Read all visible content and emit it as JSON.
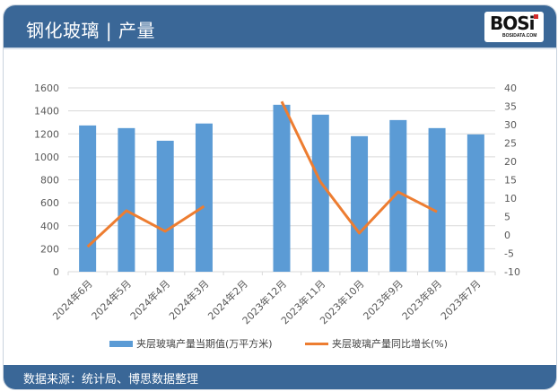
{
  "header": {
    "title": "钢化玻璃 | 产量",
    "logo_text": "BOSi",
    "logo_sub": "BOSIDATA.COM"
  },
  "footer": {
    "source": "数据来源：统计局、博思数据整理"
  },
  "colors": {
    "header_bg": "#3a6797",
    "bar": "#5b9bd5",
    "line": "#ed7d31"
  },
  "legend": {
    "bar_label": "夹层玻璃产量当期值(万平方米)",
    "line_label": "夹层玻璃产量同比增长(%)"
  },
  "chart_data": {
    "type": "bar",
    "title": "钢化玻璃 | 产量",
    "categories": [
      "2024年6月",
      "2024年5月",
      "2024年4月",
      "2024年3月",
      "2024年2月",
      "2023年12月",
      "2023年11月",
      "2023年10月",
      "2023年9月",
      "2023年8月",
      "2023年7月"
    ],
    "series": [
      {
        "name": "夹层玻璃产量当期值(万平方米)",
        "type": "bar",
        "axis": "left",
        "values": [
          1273,
          1250,
          1140,
          1290,
          null,
          1453,
          1367,
          1180,
          1320,
          1250,
          1195
        ]
      },
      {
        "name": "夹层玻璃产量同比增长(%)",
        "type": "line",
        "axis": "right",
        "values": [
          -3.2,
          6.6,
          1.0,
          7.8,
          null,
          36.3,
          14.4,
          0.5,
          11.7,
          6.3,
          null
        ]
      }
    ],
    "ylim_left": [
      0,
      1600
    ],
    "yticks_left": [
      0,
      200,
      400,
      600,
      800,
      1000,
      1200,
      1400,
      1600
    ],
    "ylim_right": [
      -10,
      40
    ],
    "yticks_right": [
      -10,
      -5,
      0,
      5,
      10,
      15,
      20,
      25,
      30,
      35,
      40
    ],
    "grid": true,
    "legend_position": "bottom"
  }
}
